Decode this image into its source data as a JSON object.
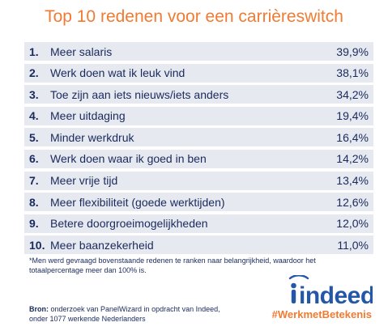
{
  "title": "Top 10 redenen voor een carrièreswitch",
  "items": [
    {
      "num": "1.",
      "label": "Meer salaris",
      "pct": "39,9%"
    },
    {
      "num": "2.",
      "label": "Werk doen wat ik leuk vind",
      "pct": "38,1%"
    },
    {
      "num": "3.",
      "label": "Toe zijn aan iets nieuws/iets anders",
      "pct": "34,2%"
    },
    {
      "num": "4.",
      "label": "Meer uitdaging",
      "pct": "19,4%"
    },
    {
      "num": "5.",
      "label": "Minder werkdruk",
      "pct": "16,4%"
    },
    {
      "num": "6.",
      "label": "Werk doen waar ik goed in ben",
      "pct": "14,2%"
    },
    {
      "num": "7.",
      "label": "Meer vrije tijd",
      "pct": "13,4%"
    },
    {
      "num": "8.",
      "label": "Meer flexibiliteit (goede werktijden)",
      "pct": "12,6%"
    },
    {
      "num": "9.",
      "label": "Betere doorgroeimogelijkheden",
      "pct": "12,0%"
    },
    {
      "num": "10.",
      "label": "Meer baanzekerheid",
      "pct": "11,0%"
    }
  ],
  "footnote": "*Men werd gevraagd bovenstaande redenen te ranken naar belangrijkheid, waardoor het totaalpercentage meer dan 100% is.",
  "source": {
    "prefix": "Bron:",
    "text": " onderzoek van PanelWizard in opdracht van Indeed, onder 1077 werkende Nederlanders"
  },
  "logo": {
    "wordmark": "indeed",
    "icon": "indeed-logo-icon"
  },
  "hashtag": "#WerkmetBetekenis",
  "colors": {
    "accent": "#f07b33",
    "text": "#1a2a5c",
    "row_shade": "#e6e9f0",
    "logo_blue": "#2557a7"
  }
}
